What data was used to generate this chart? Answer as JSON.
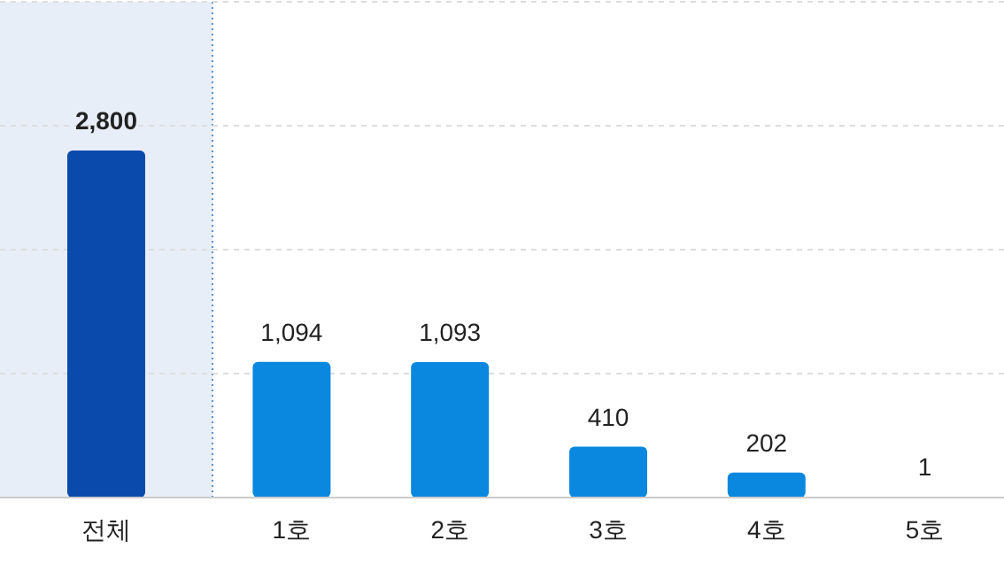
{
  "chart_data": {
    "type": "bar",
    "categories": [
      "전체",
      "1호",
      "2호",
      "3호",
      "4호",
      "5호"
    ],
    "values": [
      2800,
      1094,
      1093,
      410,
      202,
      1
    ],
    "value_labels": [
      "2,800",
      "1,094",
      "1,093",
      "410",
      "202",
      "1"
    ],
    "colors": [
      "#0b4aad",
      "#0a88e0",
      "#0a88e0",
      "#0a88e0",
      "#0a88e0",
      "#0a88e0"
    ],
    "ylim": [
      0,
      4000
    ],
    "yticks": [
      {
        "value": 0,
        "label": null
      },
      {
        "value": 1000,
        "label": null
      },
      {
        "value": 2000,
        "label": null
      },
      {
        "value": 3000,
        "label": null
      },
      {
        "value": 4000,
        "label": null
      }
    ],
    "grid": "y",
    "tick_labels": "x"
  }
}
